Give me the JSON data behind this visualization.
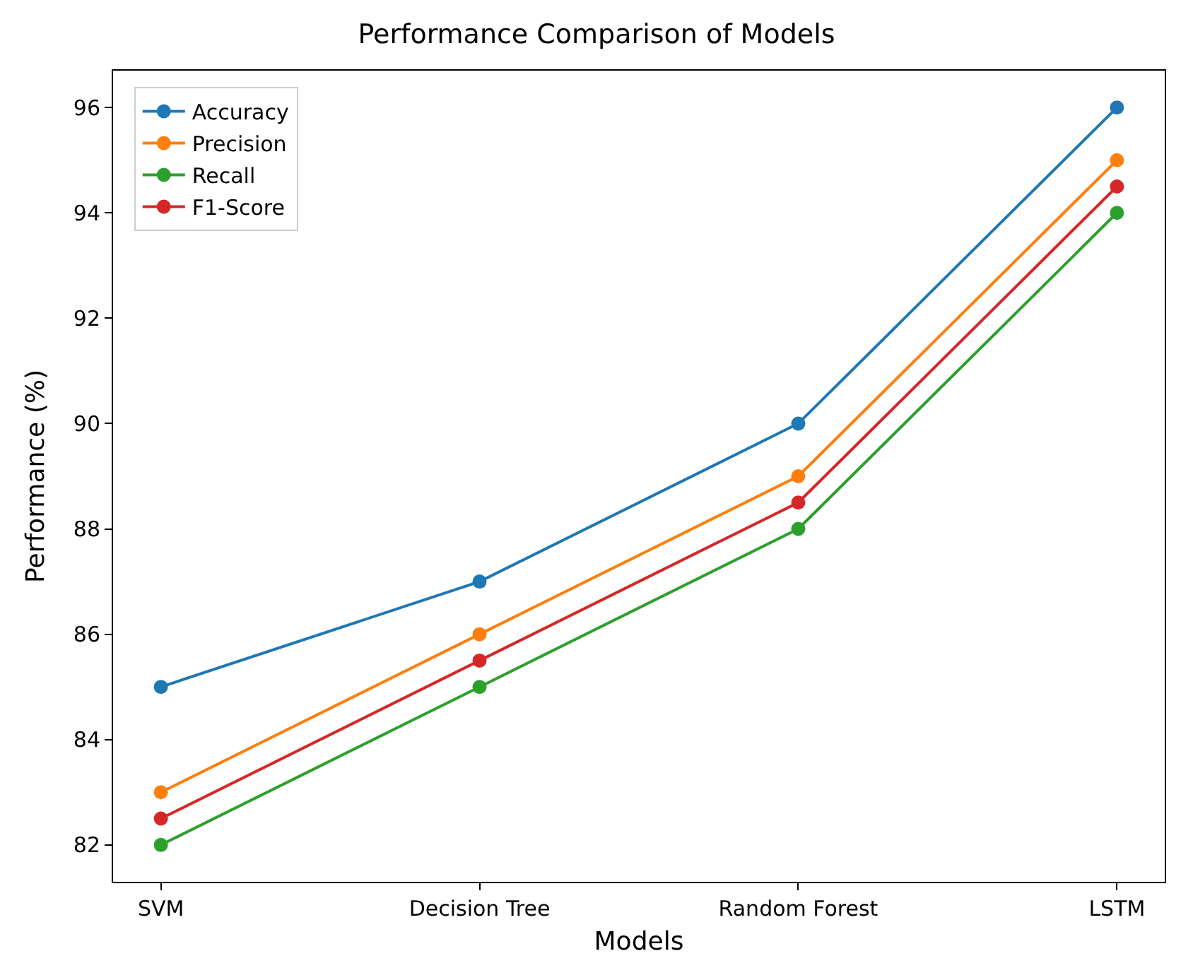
{
  "chart_data": {
    "type": "line",
    "title": "Performance Comparison of Models",
    "xlabel": "Models",
    "ylabel": "Performance (%)",
    "categories": [
      "SVM",
      "Decision Tree",
      "Random Forest",
      "LSTM"
    ],
    "series": [
      {
        "name": "Accuracy",
        "color": "#1f77b4",
        "values": [
          85,
          87,
          90,
          96
        ]
      },
      {
        "name": "Precision",
        "color": "#ff7f0e",
        "values": [
          83,
          86,
          89,
          95
        ]
      },
      {
        "name": "Recall",
        "color": "#2ca02c",
        "values": [
          82,
          85,
          88,
          94
        ]
      },
      {
        "name": "F1-Score",
        "color": "#d62728",
        "values": [
          82.5,
          85.5,
          88.5,
          94.5
        ]
      }
    ],
    "ylim": [
      81.3,
      96.7
    ],
    "yticks": [
      82,
      84,
      86,
      88,
      90,
      92,
      94,
      96
    ],
    "marker": "circle",
    "line_style": "solid",
    "legend": "top left"
  }
}
